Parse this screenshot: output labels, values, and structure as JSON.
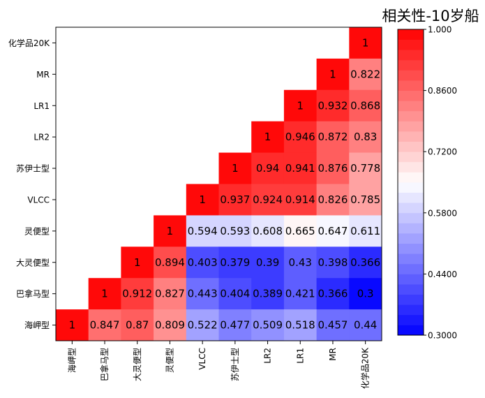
{
  "chart_data": {
    "type": "heatmap",
    "title": "相关性-10岁船",
    "categories": [
      "海岬型",
      "巴拿马型",
      "大灵便型",
      "灵便型",
      "VLCC",
      "苏伊士型",
      "LR2",
      "LR1",
      "MR",
      "化学品20K"
    ],
    "rows": [
      "化学品20K",
      "MR",
      "LR1",
      "LR2",
      "苏伊士型",
      "VLCC",
      "灵便型",
      "大灵便型",
      "巴拿马型",
      "海岬型"
    ],
    "values": [
      [
        null,
        null,
        null,
        null,
        null,
        null,
        null,
        null,
        null,
        1
      ],
      [
        null,
        null,
        null,
        null,
        null,
        null,
        null,
        null,
        1,
        0.822
      ],
      [
        null,
        null,
        null,
        null,
        null,
        null,
        null,
        1,
        0.932,
        0.868
      ],
      [
        null,
        null,
        null,
        null,
        null,
        null,
        1,
        0.946,
        0.872,
        0.83
      ],
      [
        null,
        null,
        null,
        null,
        null,
        1,
        0.94,
        0.941,
        0.876,
        0.778
      ],
      [
        null,
        null,
        null,
        null,
        1,
        0.937,
        0.924,
        0.914,
        0.826,
        0.785
      ],
      [
        null,
        null,
        null,
        1,
        0.594,
        0.593,
        0.608,
        0.665,
        0.647,
        0.611
      ],
      [
        null,
        null,
        1,
        0.894,
        0.403,
        0.379,
        0.39,
        0.43,
        0.398,
        0.366
      ],
      [
        null,
        1,
        0.912,
        0.827,
        0.443,
        0.404,
        0.389,
        0.421,
        0.366,
        0.3
      ],
      [
        1,
        0.847,
        0.87,
        0.809,
        0.522,
        0.477,
        0.509,
        0.518,
        0.457,
        0.44
      ]
    ],
    "colorbar": {
      "range": [
        0.3,
        1.0
      ],
      "ticks": [
        "1.000",
        "0.8600",
        "0.7200",
        "0.5800",
        "0.4400",
        "0.3000"
      ],
      "levels": 30,
      "colors": {
        "low": "#0000ff",
        "mid": "#ffffff",
        "high": "#ff0000"
      }
    },
    "grid": false,
    "legend": "right"
  }
}
